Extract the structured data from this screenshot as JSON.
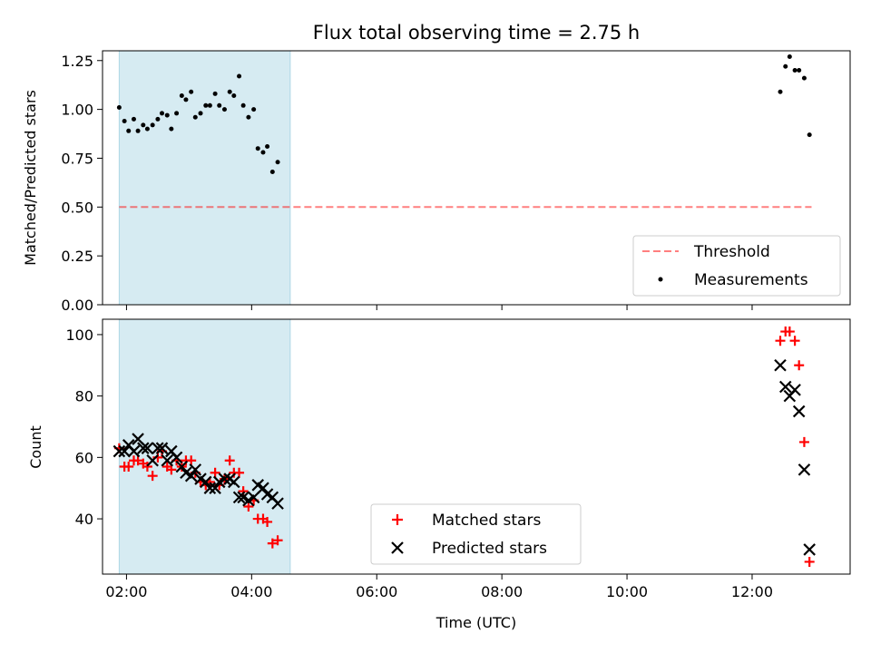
{
  "chart_data": [
    {
      "type": "scatter",
      "title": "Flux total observing time = 2.75 h",
      "xlabel": "",
      "ylabel": "Matched/Predicted stars",
      "x_unit": "hours UTC",
      "xlim": [
        "01:37",
        "13:34"
      ],
      "ylim": [
        0,
        1.3
      ],
      "y_ticks": [
        "0.00",
        "0.25",
        "0.50",
        "0.75",
        "1.00",
        "1.25"
      ],
      "x_tick_labels_shown": false,
      "shaded_span": [
        "01:53",
        "04:37"
      ],
      "shaded_color": "#add8e6",
      "legend_position": "lower right",
      "series": [
        {
          "name": "Threshold",
          "kind": "dashed-line",
          "color": "#ff0000",
          "points": [
            [
              "01:53",
              0.5
            ],
            [
              "12:57",
              0.5
            ]
          ]
        },
        {
          "name": "Measurements",
          "kind": "dots",
          "color": "#000000",
          "points": [
            [
              "01:53",
              1.01
            ],
            [
              "01:58",
              0.94
            ],
            [
              "02:02",
              0.89
            ],
            [
              "02:07",
              0.95
            ],
            [
              "02:11",
              0.89
            ],
            [
              "02:16",
              0.92
            ],
            [
              "02:20",
              0.9
            ],
            [
              "02:25",
              0.92
            ],
            [
              "02:30",
              0.95
            ],
            [
              "02:34",
              0.98
            ],
            [
              "02:39",
              0.97
            ],
            [
              "02:43",
              0.9
            ],
            [
              "02:48",
              0.98
            ],
            [
              "02:53",
              1.07
            ],
            [
              "02:57",
              1.05
            ],
            [
              "03:02",
              1.09
            ],
            [
              "03:06",
              0.96
            ],
            [
              "03:11",
              0.98
            ],
            [
              "03:16",
              1.02
            ],
            [
              "03:20",
              1.02
            ],
            [
              "03:25",
              1.08
            ],
            [
              "03:29",
              1.02
            ],
            [
              "03:34",
              1.0
            ],
            [
              "03:39",
              1.09
            ],
            [
              "03:43",
              1.07
            ],
            [
              "03:48",
              1.17
            ],
            [
              "03:52",
              1.02
            ],
            [
              "03:57",
              0.96
            ],
            [
              "04:02",
              1.0
            ],
            [
              "04:06",
              0.8
            ],
            [
              "04:11",
              0.78
            ],
            [
              "04:15",
              0.81
            ],
            [
              "04:20",
              0.68
            ],
            [
              "04:25",
              0.73
            ],
            [
              "12:27",
              1.09
            ],
            [
              "12:32",
              1.22
            ],
            [
              "12:36",
              1.27
            ],
            [
              "12:41",
              1.2
            ],
            [
              "12:45",
              1.2
            ],
            [
              "12:50",
              1.16
            ],
            [
              "12:55",
              0.87
            ]
          ]
        }
      ]
    },
    {
      "type": "scatter",
      "title": "",
      "xlabel": "Time (UTC)",
      "ylabel": "Count",
      "x_unit": "hours UTC",
      "xlim": [
        "01:37",
        "13:34"
      ],
      "ylim": [
        22,
        105
      ],
      "y_ticks": [
        "40",
        "60",
        "80",
        "100"
      ],
      "x_ticks": [
        "02:00",
        "04:00",
        "06:00",
        "08:00",
        "10:00",
        "12:00"
      ],
      "shaded_span": [
        "01:53",
        "04:37"
      ],
      "shaded_color": "#add8e6",
      "legend_position": "lower center",
      "series": [
        {
          "name": "Matched stars",
          "kind": "plus",
          "color": "#ff0000",
          "points": [
            [
              "01:53",
              63
            ],
            [
              "01:58",
              57
            ],
            [
              "02:02",
              57
            ],
            [
              "02:07",
              59
            ],
            [
              "02:11",
              59
            ],
            [
              "02:16",
              58
            ],
            [
              "02:20",
              57
            ],
            [
              "02:25",
              54
            ],
            [
              "02:30",
              60
            ],
            [
              "02:34",
              62
            ],
            [
              "02:39",
              57
            ],
            [
              "02:43",
              56
            ],
            [
              "02:48",
              59
            ],
            [
              "02:53",
              57
            ],
            [
              "02:57",
              59
            ],
            [
              "03:02",
              59
            ],
            [
              "03:06",
              55
            ],
            [
              "03:11",
              52
            ],
            [
              "03:16",
              51
            ],
            [
              "03:20",
              52
            ],
            [
              "03:25",
              55
            ],
            [
              "03:29",
              51
            ],
            [
              "03:34",
              53
            ],
            [
              "03:39",
              59
            ],
            [
              "03:43",
              55
            ],
            [
              "03:48",
              55
            ],
            [
              "03:52",
              49
            ],
            [
              "03:57",
              44
            ],
            [
              "04:02",
              46
            ],
            [
              "04:06",
              40
            ],
            [
              "04:11",
              40
            ],
            [
              "04:15",
              39
            ],
            [
              "04:20",
              32
            ],
            [
              "04:25",
              33
            ],
            [
              "12:27",
              98
            ],
            [
              "12:32",
              101
            ],
            [
              "12:36",
              101
            ],
            [
              "12:41",
              98
            ],
            [
              "12:45",
              90
            ],
            [
              "12:50",
              65
            ],
            [
              "12:55",
              26
            ]
          ]
        },
        {
          "name": "Predicted stars",
          "kind": "x",
          "color": "#000000",
          "points": [
            [
              "01:53",
              62
            ],
            [
              "01:58",
              62
            ],
            [
              "02:02",
              64
            ],
            [
              "02:07",
              62
            ],
            [
              "02:11",
              66
            ],
            [
              "02:16",
              63
            ],
            [
              "02:20",
              63
            ],
            [
              "02:25",
              59
            ],
            [
              "02:30",
              63
            ],
            [
              "02:34",
              63
            ],
            [
              "02:39",
              59
            ],
            [
              "02:43",
              62
            ],
            [
              "02:48",
              60
            ],
            [
              "02:53",
              57
            ],
            [
              "02:57",
              55
            ],
            [
              "03:02",
              54
            ],
            [
              "03:06",
              56
            ],
            [
              "03:11",
              53
            ],
            [
              "03:16",
              52
            ],
            [
              "03:20",
              50
            ],
            [
              "03:25",
              50
            ],
            [
              "03:29",
              52
            ],
            [
              "03:34",
              53
            ],
            [
              "03:39",
              53
            ],
            [
              "03:43",
              52
            ],
            [
              "03:48",
              47
            ],
            [
              "03:52",
              47
            ],
            [
              "03:57",
              46
            ],
            [
              "04:02",
              47
            ],
            [
              "04:06",
              51
            ],
            [
              "04:11",
              50
            ],
            [
              "04:15",
              48
            ],
            [
              "04:20",
              47
            ],
            [
              "04:25",
              45
            ],
            [
              "12:27",
              90
            ],
            [
              "12:32",
              83
            ],
            [
              "12:36",
              80
            ],
            [
              "12:41",
              82
            ],
            [
              "12:45",
              75
            ],
            [
              "12:50",
              56
            ],
            [
              "12:55",
              30
            ]
          ]
        }
      ]
    }
  ]
}
